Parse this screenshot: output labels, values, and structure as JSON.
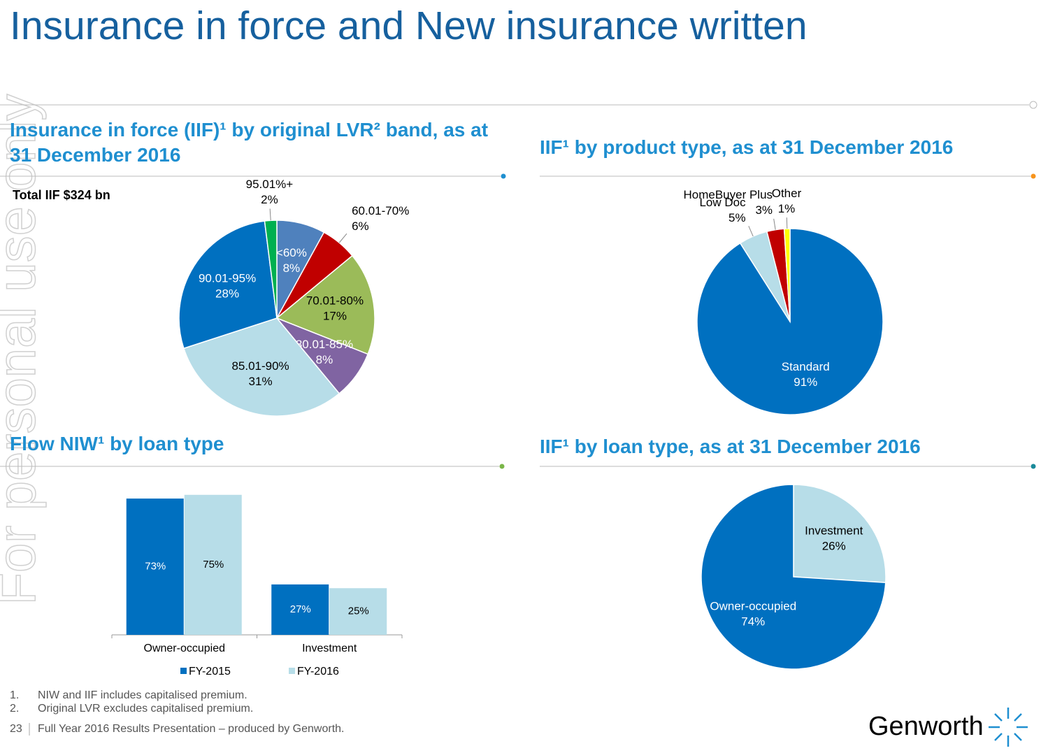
{
  "title": "Insurance in force and New insurance written",
  "watermark": "For personal use only",
  "footnotes": [
    {
      "number": "1.",
      "text": "NIW and IIF includes capitalised premium."
    },
    {
      "number": "2.",
      "text": "Original LVR excludes capitalised premium."
    }
  ],
  "footer": {
    "page": "23",
    "text": "Full Year 2016 Results Presentation – produced by Genworth."
  },
  "logo": "Genworth",
  "chart_data": [
    {
      "type": "pie",
      "title": "Insurance in force (IIF)¹ by original LVR² band, as at 31 December 2016",
      "subtitle": "Total IIF $324 bn",
      "categories": [
        "<60%",
        "60.01-70%",
        "70.01-80%",
        "80.01-85%",
        "85.01-90%",
        "90.01-95%",
        "95.01%+"
      ],
      "values": [
        8,
        6,
        17,
        8,
        31,
        28,
        2
      ],
      "value_labels": [
        "8%",
        "6%",
        "17%",
        "8%",
        "31%",
        "28%",
        "2%"
      ],
      "colors": [
        "#4f81bd",
        "#c00000",
        "#9bbb59",
        "#8064a2",
        "#b7dde8",
        "#0070c0",
        "#00b050"
      ]
    },
    {
      "type": "pie",
      "title": "IIF¹ by product type, as at 31 December 2016",
      "categories": [
        "Standard",
        "Low Doc",
        "HomeBuyer Plus",
        "Other"
      ],
      "values": [
        91,
        5,
        3,
        1
      ],
      "value_labels": [
        "91%",
        "5%",
        "3%",
        "1%"
      ],
      "colors": [
        "#0070c0",
        "#b7dde8",
        "#c00000",
        "#ffff00"
      ]
    },
    {
      "type": "bar",
      "title": "Flow NIW¹ by loan type",
      "categories": [
        "Owner-occupied",
        "Investment"
      ],
      "series": [
        {
          "name": "FY-2015",
          "color": "#0070c0",
          "values": [
            73,
            27
          ],
          "value_labels": [
            "73%",
            "27%"
          ]
        },
        {
          "name": "FY-2016",
          "color": "#b7dde8",
          "values": [
            75,
            25
          ],
          "value_labels": [
            "75%",
            "25%"
          ]
        }
      ]
    },
    {
      "type": "pie",
      "title": "IIF¹ by loan type, as at 31 December 2016",
      "categories": [
        "Investment",
        "Owner-occupied"
      ],
      "values": [
        26,
        74
      ],
      "value_labels": [
        "26%",
        "74%"
      ],
      "colors": [
        "#b7dde8",
        "#0070c0"
      ]
    }
  ]
}
